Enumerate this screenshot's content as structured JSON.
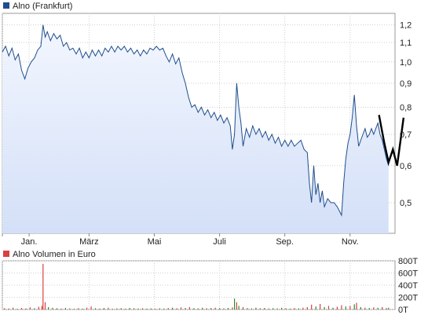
{
  "chart_data": [
    {
      "type": "area",
      "legend": "Alno (Frankfurt)",
      "legend_placement": "top-left",
      "series_color": "#1f4e8c",
      "fill_color": "#dfe8fb",
      "overlay_color": "#000000",
      "y_scale": "log",
      "ylim": [
        0.43,
        1.27
      ],
      "y_ticks": [
        {
          "value": 0.5,
          "label": "0,5"
        },
        {
          "value": 0.6,
          "label": "0,6"
        },
        {
          "value": 0.7,
          "label": "0,7"
        },
        {
          "value": 0.8,
          "label": "0,8"
        },
        {
          "value": 0.9,
          "label": "0,9"
        },
        {
          "value": 1.0,
          "label": "1,0"
        },
        {
          "value": 1.1,
          "label": "1,1"
        },
        {
          "value": 1.2,
          "label": "1,2"
        }
      ],
      "x_range": [
        0,
        367
      ],
      "x_ticks": [
        {
          "day": 0,
          "label": ""
        },
        {
          "day": 25,
          "label": "Jan."
        },
        {
          "day": 81,
          "label": "März"
        },
        {
          "day": 142,
          "label": "Mai"
        },
        {
          "day": 203,
          "label": "Juli"
        },
        {
          "day": 264,
          "label": "Sep."
        },
        {
          "day": 325,
          "label": "Nov."
        }
      ],
      "grid": true,
      "points": [
        [
          0,
          1.05
        ],
        [
          3,
          1.08
        ],
        [
          6,
          1.03
        ],
        [
          9,
          1.07
        ],
        [
          12,
          1.01
        ],
        [
          15,
          1.04
        ],
        [
          18,
          0.96
        ],
        [
          21,
          0.92
        ],
        [
          24,
          0.97
        ],
        [
          27,
          1.0
        ],
        [
          30,
          1.02
        ],
        [
          33,
          1.06
        ],
        [
          36,
          1.08
        ],
        [
          38,
          1.2
        ],
        [
          40,
          1.13
        ],
        [
          42,
          1.16
        ],
        [
          45,
          1.11
        ],
        [
          48,
          1.15
        ],
        [
          51,
          1.12
        ],
        [
          54,
          1.14
        ],
        [
          57,
          1.08
        ],
        [
          60,
          1.1
        ],
        [
          63,
          1.06
        ],
        [
          66,
          1.07
        ],
        [
          69,
          1.04
        ],
        [
          72,
          1.07
        ],
        [
          75,
          1.02
        ],
        [
          78,
          1.05
        ],
        [
          81,
          1.02
        ],
        [
          84,
          1.06
        ],
        [
          87,
          1.03
        ],
        [
          90,
          1.06
        ],
        [
          93,
          1.03
        ],
        [
          96,
          1.07
        ],
        [
          99,
          1.05
        ],
        [
          102,
          1.08
        ],
        [
          105,
          1.05
        ],
        [
          108,
          1.08
        ],
        [
          111,
          1.06
        ],
        [
          114,
          1.08
        ],
        [
          117,
          1.05
        ],
        [
          120,
          1.07
        ],
        [
          123,
          1.04
        ],
        [
          126,
          1.06
        ],
        [
          129,
          1.03
        ],
        [
          132,
          1.06
        ],
        [
          135,
          1.04
        ],
        [
          138,
          1.07
        ],
        [
          141,
          1.06
        ],
        [
          144,
          1.08
        ],
        [
          147,
          1.06
        ],
        [
          150,
          1.07
        ],
        [
          153,
          1.03
        ],
        [
          156,
          1.0
        ],
        [
          159,
          1.04
        ],
        [
          162,
          0.99
        ],
        [
          165,
          1.02
        ],
        [
          168,
          0.95
        ],
        [
          171,
          0.9
        ],
        [
          174,
          0.84
        ],
        [
          177,
          0.8
        ],
        [
          180,
          0.81
        ],
        [
          183,
          0.78
        ],
        [
          186,
          0.8
        ],
        [
          189,
          0.77
        ],
        [
          192,
          0.79
        ],
        [
          195,
          0.76
        ],
        [
          198,
          0.78
        ],
        [
          201,
          0.75
        ],
        [
          204,
          0.77
        ],
        [
          207,
          0.74
        ],
        [
          210,
          0.76
        ],
        [
          213,
          0.73
        ],
        [
          215,
          0.65
        ],
        [
          217,
          0.7
        ],
        [
          219,
          0.9
        ],
        [
          221,
          0.8
        ],
        [
          223,
          0.74
        ],
        [
          225,
          0.66
        ],
        [
          228,
          0.72
        ],
        [
          231,
          0.69
        ],
        [
          234,
          0.73
        ],
        [
          237,
          0.7
        ],
        [
          240,
          0.72
        ],
        [
          243,
          0.69
        ],
        [
          246,
          0.71
        ],
        [
          249,
          0.68
        ],
        [
          252,
          0.7
        ],
        [
          255,
          0.67
        ],
        [
          258,
          0.69
        ],
        [
          261,
          0.66
        ],
        [
          264,
          0.68
        ],
        [
          267,
          0.66
        ],
        [
          270,
          0.68
        ],
        [
          273,
          0.66
        ],
        [
          276,
          0.67
        ],
        [
          279,
          0.68
        ],
        [
          282,
          0.65
        ],
        [
          285,
          0.64
        ],
        [
          287,
          0.55
        ],
        [
          289,
          0.5
        ],
        [
          291,
          0.6
        ],
        [
          293,
          0.52
        ],
        [
          295,
          0.55
        ],
        [
          297,
          0.5
        ],
        [
          299,
          0.53
        ],
        [
          301,
          0.49
        ],
        [
          304,
          0.51
        ],
        [
          307,
          0.5
        ],
        [
          310,
          0.5
        ],
        [
          313,
          0.49
        ],
        [
          315,
          0.48
        ],
        [
          317,
          0.47
        ],
        [
          319,
          0.55
        ],
        [
          321,
          0.62
        ],
        [
          323,
          0.67
        ],
        [
          325,
          0.7
        ],
        [
          327,
          0.76
        ],
        [
          329,
          0.85
        ],
        [
          331,
          0.73
        ],
        [
          333,
          0.66
        ],
        [
          335,
          0.68
        ],
        [
          337,
          0.7
        ],
        [
          339,
          0.72
        ],
        [
          341,
          0.69
        ],
        [
          343,
          0.7
        ],
        [
          345,
          0.72
        ],
        [
          347,
          0.7
        ],
        [
          349,
          0.72
        ],
        [
          351,
          0.74
        ],
        [
          353,
          0.7
        ],
        [
          355,
          0.68
        ],
        [
          357,
          0.65
        ],
        [
          359,
          0.62
        ],
        [
          361,
          0.6
        ]
      ],
      "overlay_points": [
        [
          352,
          0.77
        ],
        [
          357,
          0.67
        ],
        [
          361,
          0.61
        ],
        [
          365,
          0.65
        ],
        [
          369,
          0.6
        ],
        [
          375,
          0.76
        ]
      ]
    },
    {
      "type": "bar",
      "legend": "Alno Volumen in Euro",
      "legend_placement": "top-left",
      "bar_color": "#d94040",
      "bar_color_alt": "#2e8b2e",
      "ylim": [
        0,
        800
      ],
      "y_ticks": [
        {
          "value": 0,
          "label": "0T"
        },
        {
          "value": 200,
          "label": "200T"
        },
        {
          "value": 400,
          "label": "400T"
        },
        {
          "value": 600,
          "label": "600T"
        },
        {
          "value": 800,
          "label": "800T"
        }
      ],
      "grid": true,
      "bars": [
        [
          2,
          22,
          "r"
        ],
        [
          6,
          15,
          "g"
        ],
        [
          10,
          30,
          "r"
        ],
        [
          14,
          12,
          "g"
        ],
        [
          18,
          25,
          "r"
        ],
        [
          22,
          18,
          "g"
        ],
        [
          26,
          35,
          "r"
        ],
        [
          30,
          20,
          "g"
        ],
        [
          34,
          45,
          "r"
        ],
        [
          37,
          60,
          "r"
        ],
        [
          38,
          750,
          "r"
        ],
        [
          40,
          120,
          "r"
        ],
        [
          43,
          40,
          "g"
        ],
        [
          47,
          28,
          "r"
        ],
        [
          51,
          20,
          "g"
        ],
        [
          55,
          15,
          "r"
        ],
        [
          59,
          25,
          "g"
        ],
        [
          63,
          18,
          "r"
        ],
        [
          67,
          12,
          "g"
        ],
        [
          71,
          22,
          "r"
        ],
        [
          75,
          14,
          "g"
        ],
        [
          79,
          30,
          "r"
        ],
        [
          83,
          50,
          "r"
        ],
        [
          87,
          20,
          "g"
        ],
        [
          91,
          16,
          "r"
        ],
        [
          95,
          24,
          "g"
        ],
        [
          99,
          30,
          "r"
        ],
        [
          103,
          12,
          "g"
        ],
        [
          107,
          18,
          "r"
        ],
        [
          111,
          22,
          "g"
        ],
        [
          115,
          14,
          "r"
        ],
        [
          119,
          26,
          "g"
        ],
        [
          123,
          20,
          "r"
        ],
        [
          127,
          16,
          "g"
        ],
        [
          131,
          22,
          "r"
        ],
        [
          135,
          14,
          "g"
        ],
        [
          139,
          18,
          "r"
        ],
        [
          143,
          12,
          "g"
        ],
        [
          147,
          20,
          "r"
        ],
        [
          151,
          16,
          "g"
        ],
        [
          155,
          24,
          "r"
        ],
        [
          159,
          30,
          "g"
        ],
        [
          163,
          20,
          "r"
        ],
        [
          167,
          35,
          "r"
        ],
        [
          171,
          25,
          "g"
        ],
        [
          175,
          40,
          "r"
        ],
        [
          179,
          22,
          "g"
        ],
        [
          183,
          18,
          "r"
        ],
        [
          187,
          28,
          "g"
        ],
        [
          191,
          20,
          "r"
        ],
        [
          195,
          24,
          "g"
        ],
        [
          199,
          30,
          "r"
        ],
        [
          203,
          22,
          "g"
        ],
        [
          207,
          18,
          "r"
        ],
        [
          211,
          26,
          "g"
        ],
        [
          215,
          35,
          "r"
        ],
        [
          217,
          180,
          "g"
        ],
        [
          219,
          120,
          "r"
        ],
        [
          221,
          60,
          "g"
        ],
        [
          225,
          40,
          "r"
        ],
        [
          229,
          22,
          "g"
        ],
        [
          233,
          18,
          "r"
        ],
        [
          237,
          30,
          "g"
        ],
        [
          241,
          20,
          "r"
        ],
        [
          245,
          24,
          "g"
        ],
        [
          249,
          16,
          "r"
        ],
        [
          253,
          22,
          "g"
        ],
        [
          257,
          18,
          "r"
        ],
        [
          261,
          28,
          "g"
        ],
        [
          265,
          20,
          "r"
        ],
        [
          269,
          14,
          "g"
        ],
        [
          273,
          24,
          "r"
        ],
        [
          277,
          18,
          "g"
        ],
        [
          281,
          30,
          "r"
        ],
        [
          285,
          40,
          "r"
        ],
        [
          289,
          80,
          "r"
        ],
        [
          293,
          50,
          "g"
        ],
        [
          297,
          90,
          "r"
        ],
        [
          301,
          40,
          "g"
        ],
        [
          305,
          60,
          "r"
        ],
        [
          309,
          30,
          "g"
        ],
        [
          313,
          45,
          "r"
        ],
        [
          317,
          70,
          "r"
        ],
        [
          321,
          50,
          "g"
        ],
        [
          325,
          60,
          "r"
        ],
        [
          329,
          85,
          "g"
        ],
        [
          331,
          110,
          "r"
        ],
        [
          335,
          40,
          "g"
        ],
        [
          339,
          30,
          "r"
        ],
        [
          343,
          25,
          "g"
        ],
        [
          347,
          35,
          "r"
        ],
        [
          351,
          28,
          "g"
        ],
        [
          355,
          40,
          "r"
        ],
        [
          359,
          22,
          "g"
        ],
        [
          361,
          30,
          "r"
        ]
      ]
    }
  ]
}
